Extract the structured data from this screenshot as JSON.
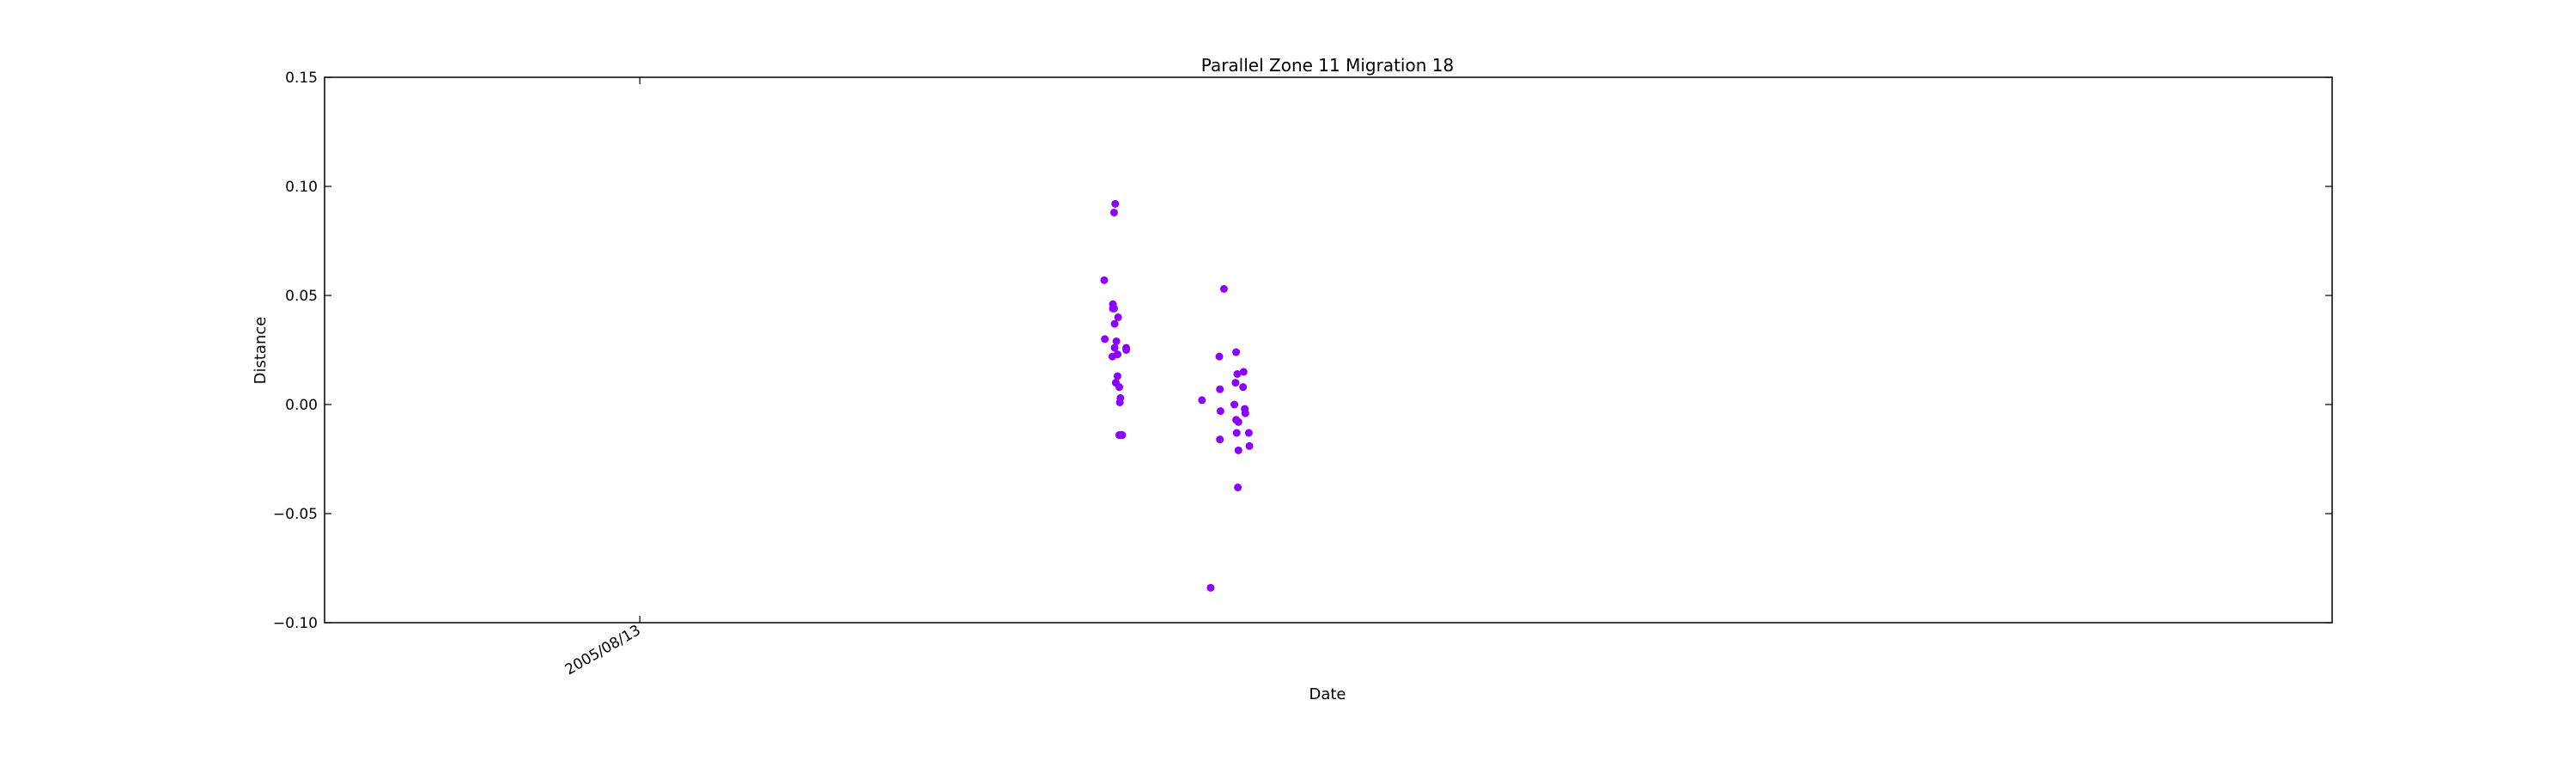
{
  "chart_data": {
    "type": "scatter",
    "title": "Parallel Zone 11 Migration 18",
    "xlabel": "Date",
    "ylabel": "Distance",
    "ylim": [
      -0.1,
      0.15
    ],
    "yticks": [
      "−0.10",
      "−0.05",
      "0.00",
      "0.05",
      "0.10",
      "0.15"
    ],
    "yticks_values": [
      -0.1,
      -0.05,
      0.0,
      0.05,
      0.1,
      0.15
    ],
    "xlim": [
      "2004/02/15",
      "2013/08/17"
    ],
    "xticks": [
      "2005/08/13"
    ],
    "xticks_values": [
      "2005/08/13"
    ],
    "grid": false,
    "marker_color": "#8b00ff",
    "series": [
      {
        "x": [
          "2007/10/25",
          "2007/10/26",
          "2007/11/09",
          "2007/11/09",
          "2007/11/08",
          "2007/11/11",
          "2007/11/12",
          "2007/11/12",
          "2007/11/11",
          "2007/11/13",
          "2007/11/15",
          "2007/11/14",
          "2007/11/18",
          "2007/11/17",
          "2007/11/17",
          "2007/11/20",
          "2007/11/21",
          "2007/11/22",
          "2007/11/23",
          "2007/11/25",
          "2007/12/02",
          "2007/11/20",
          "2007/12/02",
          "2008/04/11",
          "2008/04/26",
          "2008/05/11",
          "2008/05/12",
          "2008/05/13",
          "2008/05/12",
          "2008/05/19",
          "2008/06/06",
          "2008/06/08",
          "2008/06/09",
          "2008/06/11",
          "2008/06/09",
          "2008/06/10",
          "2008/06/13",
          "2008/06/13",
          "2008/06/12",
          "2008/06/22",
          "2008/06/21",
          "2008/06/24",
          "2008/06/25",
          "2008/07/01",
          "2008/07/02"
        ],
        "y": [
          0.057,
          0.03,
          0.046,
          0.044,
          0.022,
          0.044,
          0.037,
          0.026,
          0.088,
          0.092,
          0.029,
          0.01,
          0.04,
          0.023,
          0.013,
          0.008,
          0.001,
          0.003,
          -0.014,
          -0.014,
          0.026,
          -0.014,
          0.025,
          0.002,
          -0.084,
          0.022,
          0.007,
          -0.003,
          -0.016,
          0.053,
          0.0,
          0.01,
          0.024,
          0.014,
          -0.007,
          -0.013,
          -0.008,
          -0.021,
          -0.038,
          0.015,
          0.008,
          -0.002,
          -0.004,
          -0.013,
          -0.019
        ]
      }
    ]
  }
}
